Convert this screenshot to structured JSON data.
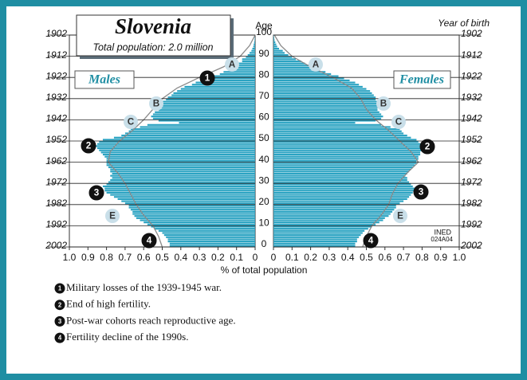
{
  "chart_data": {
    "type": "pyramid",
    "title": "Slovenia",
    "subtitle": "Total population: 2.0 million",
    "y_label": "Age",
    "y2_label": "Year of birth",
    "x_label": "% of total population",
    "source": "INED",
    "code": "024A04",
    "ages": [
      0,
      1,
      2,
      3,
      4,
      5,
      6,
      7,
      8,
      9,
      10,
      11,
      12,
      13,
      14,
      15,
      16,
      17,
      18,
      19,
      20,
      21,
      22,
      23,
      24,
      25,
      26,
      27,
      28,
      29,
      30,
      31,
      32,
      33,
      34,
      35,
      36,
      37,
      38,
      39,
      40,
      41,
      42,
      43,
      44,
      45,
      46,
      47,
      48,
      49,
      50,
      51,
      52,
      53,
      54,
      55,
      56,
      57,
      58,
      59,
      60,
      61,
      62,
      63,
      64,
      65,
      66,
      67,
      68,
      69,
      70,
      71,
      72,
      73,
      74,
      75,
      76,
      77,
      78,
      79,
      80,
      81,
      82,
      83,
      84,
      85,
      86,
      87,
      88,
      89,
      90,
      91,
      92,
      93,
      94,
      95,
      96,
      97,
      98,
      99,
      100
    ],
    "series": [
      {
        "name": "Males",
        "side": "left",
        "color": "#2ba3c2",
        "values": [
          0.46,
          0.46,
          0.47,
          0.47,
          0.48,
          0.49,
          0.5,
          0.52,
          0.54,
          0.56,
          0.58,
          0.6,
          0.62,
          0.64,
          0.65,
          0.66,
          0.66,
          0.67,
          0.68,
          0.68,
          0.7,
          0.72,
          0.74,
          0.76,
          0.78,
          0.8,
          0.81,
          0.81,
          0.82,
          0.8,
          0.79,
          0.78,
          0.77,
          0.78,
          0.77,
          0.78,
          0.78,
          0.79,
          0.8,
          0.8,
          0.8,
          0.8,
          0.81,
          0.82,
          0.83,
          0.84,
          0.85,
          0.86,
          0.85,
          0.84,
          0.82,
          0.76,
          0.72,
          0.7,
          0.68,
          0.67,
          0.62,
          0.58,
          0.41,
          0.52,
          0.55,
          0.56,
          0.55,
          0.54,
          0.52,
          0.52,
          0.54,
          0.52,
          0.5,
          0.48,
          0.47,
          0.45,
          0.44,
          0.42,
          0.4,
          0.38,
          0.34,
          0.32,
          0.28,
          0.25,
          0.22,
          0.19,
          0.17,
          0.14,
          0.12,
          0.1,
          0.09,
          0.07,
          0.07,
          0.05,
          0.04,
          0.03,
          0.02,
          0.015,
          0.01,
          0.008,
          0.005,
          0.003,
          0.002,
          0.001,
          0
        ]
      },
      {
        "name": "Females",
        "side": "right",
        "color": "#2ba3c2",
        "values": [
          0.44,
          0.44,
          0.45,
          0.45,
          0.46,
          0.47,
          0.48,
          0.49,
          0.51,
          0.53,
          0.55,
          0.57,
          0.59,
          0.6,
          0.62,
          0.63,
          0.64,
          0.65,
          0.66,
          0.66,
          0.68,
          0.7,
          0.72,
          0.73,
          0.74,
          0.75,
          0.76,
          0.76,
          0.75,
          0.74,
          0.73,
          0.72,
          0.72,
          0.71,
          0.72,
          0.73,
          0.74,
          0.75,
          0.76,
          0.77,
          0.77,
          0.78,
          0.78,
          0.79,
          0.79,
          0.8,
          0.8,
          0.79,
          0.79,
          0.78,
          0.77,
          0.74,
          0.72,
          0.7,
          0.69,
          0.68,
          0.63,
          0.58,
          0.44,
          0.55,
          0.58,
          0.59,
          0.58,
          0.57,
          0.56,
          0.56,
          0.58,
          0.57,
          0.56,
          0.55,
          0.55,
          0.54,
          0.53,
          0.52,
          0.5,
          0.48,
          0.46,
          0.44,
          0.41,
          0.38,
          0.35,
          0.31,
          0.28,
          0.25,
          0.22,
          0.2,
          0.17,
          0.15,
          0.12,
          0.1,
          0.08,
          0.06,
          0.05,
          0.03,
          0.02,
          0.015,
          0.01,
          0.006,
          0.004,
          0.002,
          0.001
        ]
      }
    ],
    "reference": {
      "color": "#8a8a8a",
      "ages": [
        0,
        5,
        10,
        15,
        20,
        25,
        30,
        35,
        40,
        45,
        50,
        55,
        60,
        65,
        70,
        75,
        80,
        85,
        90,
        95,
        100
      ],
      "left": [
        0.5,
        0.52,
        0.55,
        0.6,
        0.64,
        0.67,
        0.7,
        0.74,
        0.79,
        0.78,
        0.73,
        0.66,
        0.6,
        0.55,
        0.5,
        0.42,
        0.3,
        0.17,
        0.08,
        0.03,
        0
      ],
      "right": [
        0.48,
        0.5,
        0.53,
        0.58,
        0.62,
        0.64,
        0.67,
        0.72,
        0.78,
        0.74,
        0.68,
        0.62,
        0.55,
        0.5,
        0.47,
        0.42,
        0.32,
        0.2,
        0.1,
        0.04,
        0.005
      ]
    },
    "xlim": [
      0,
      1
    ],
    "xticks": [
      0,
      0.1,
      0.2,
      0.3,
      0.4,
      0.5,
      0.6,
      0.7,
      0.8,
      0.9,
      {
        "value": 1,
        "label": "1.0"
      }
    ],
    "ylim": [
      0,
      100
    ],
    "yticks": [
      0,
      10,
      20,
      30,
      40,
      50,
      60,
      70,
      80,
      90,
      100
    ],
    "y2lim": [
      2002,
      1902
    ],
    "y2ticks": [
      2002,
      1992,
      1982,
      1972,
      1962,
      1952,
      1942,
      1932,
      1922,
      1912,
      1902
    ],
    "grid": true,
    "markers": {
      "left": [
        "A",
        "1",
        "B",
        "C",
        "2",
        "3",
        "E",
        "4"
      ],
      "right": [
        "A",
        "B",
        "C",
        "2",
        "3",
        "E",
        "4"
      ]
    },
    "notes": [
      {
        "num": "1",
        "text": "Military losses of the 1939-1945 war."
      },
      {
        "num": "2",
        "text": "End of high fertility."
      },
      {
        "num": "3",
        "text": "Post-war cohorts reach reproductive age."
      },
      {
        "num": "4",
        "text": "Fertility decline of the 1990s."
      }
    ]
  }
}
